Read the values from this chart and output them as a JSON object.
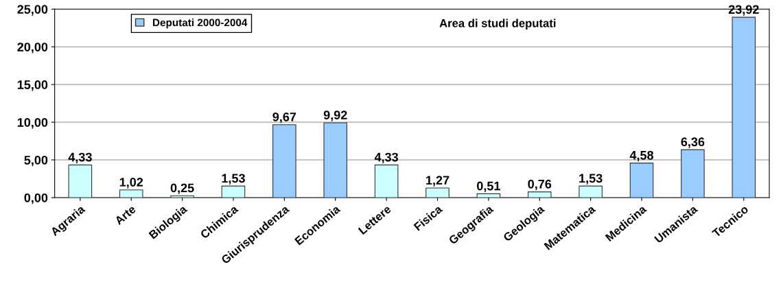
{
  "chart_data": {
    "type": "bar",
    "title": "Area di studi deputati",
    "categories": [
      "Agraria",
      "Arte",
      "Biologia",
      "Chimica",
      "Giurisprudenza",
      "Economia",
      "Lettere",
      "Fisica",
      "Geografia",
      "Geologia",
      "Matematica",
      "Medicina",
      "Umanista",
      "Tecnico"
    ],
    "series": [
      {
        "name": "Deputati 2000-2004",
        "color": "#99ccff",
        "colors": [
          "#ccffff",
          "#ccffff",
          "#ccffff",
          "#ccffff",
          "#99ccff",
          "#99ccff",
          "#ccffff",
          "#ccffff",
          "#ccffff",
          "#ccffff",
          "#ccffff",
          "#99ccff",
          "#99ccff",
          "#99ccff"
        ],
        "values": [
          4.33,
          1.02,
          0.25,
          1.53,
          9.67,
          9.92,
          4.33,
          1.27,
          0.51,
          0.76,
          1.53,
          4.58,
          6.36,
          23.92
        ],
        "value_labels": [
          "4,33",
          "1,02",
          "0,25",
          "1,53",
          "9,67",
          "9,92",
          "4,33",
          "1,27",
          "0,51",
          "0,76",
          "1,53",
          "4,58",
          "6,36",
          "23,92"
        ]
      }
    ],
    "ylim": [
      0,
      25
    ],
    "yticks": [
      {
        "value": 0,
        "label": "0,00"
      },
      {
        "value": 5,
        "label": "5,00"
      },
      {
        "value": 10,
        "label": "10,00"
      },
      {
        "value": 15,
        "label": "15,00"
      },
      {
        "value": 20,
        "label": "20,00"
      },
      {
        "value": 25,
        "label": "25,00"
      }
    ],
    "grid": "y",
    "legend": "top left"
  }
}
